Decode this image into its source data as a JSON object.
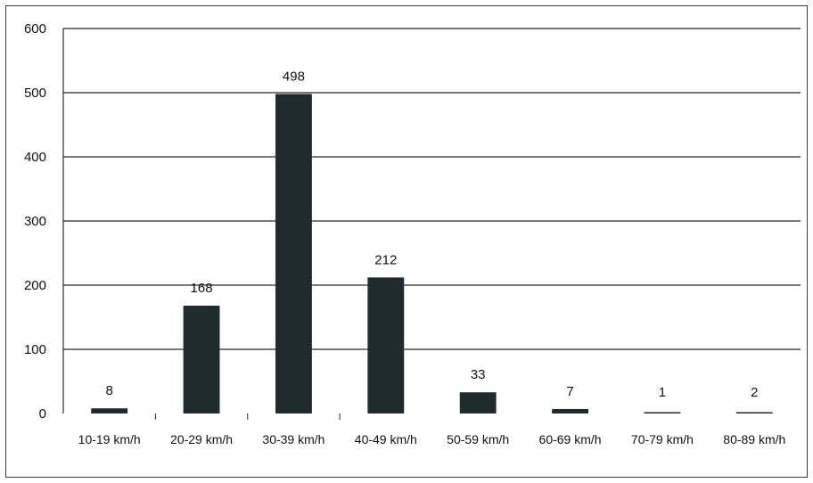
{
  "chart_data": {
    "type": "bar",
    "title": "",
    "xlabel": "",
    "ylabel": "",
    "categories": [
      "10-19 km/h",
      "20-29 km/h",
      "30-39 km/h",
      "40-49 km/h",
      "50-59 km/h",
      "60-69 km/h",
      "70-79 km/h",
      "80-89 km/h"
    ],
    "values": [
      8,
      168,
      498,
      212,
      33,
      7,
      1,
      2
    ],
    "data_labels": [
      "8",
      "168",
      "498",
      "212",
      "33",
      "7",
      "1",
      "2"
    ],
    "ylim": [
      0,
      600
    ],
    "yticks": [
      0,
      100,
      200,
      300,
      400,
      500,
      600
    ],
    "ytick_labels": [
      "0",
      "100",
      "200",
      "300",
      "400",
      "500",
      "600"
    ],
    "grid": true,
    "legend": "none",
    "bar_color": "#1e2a2c",
    "grid_color": "#2b2b2b"
  }
}
